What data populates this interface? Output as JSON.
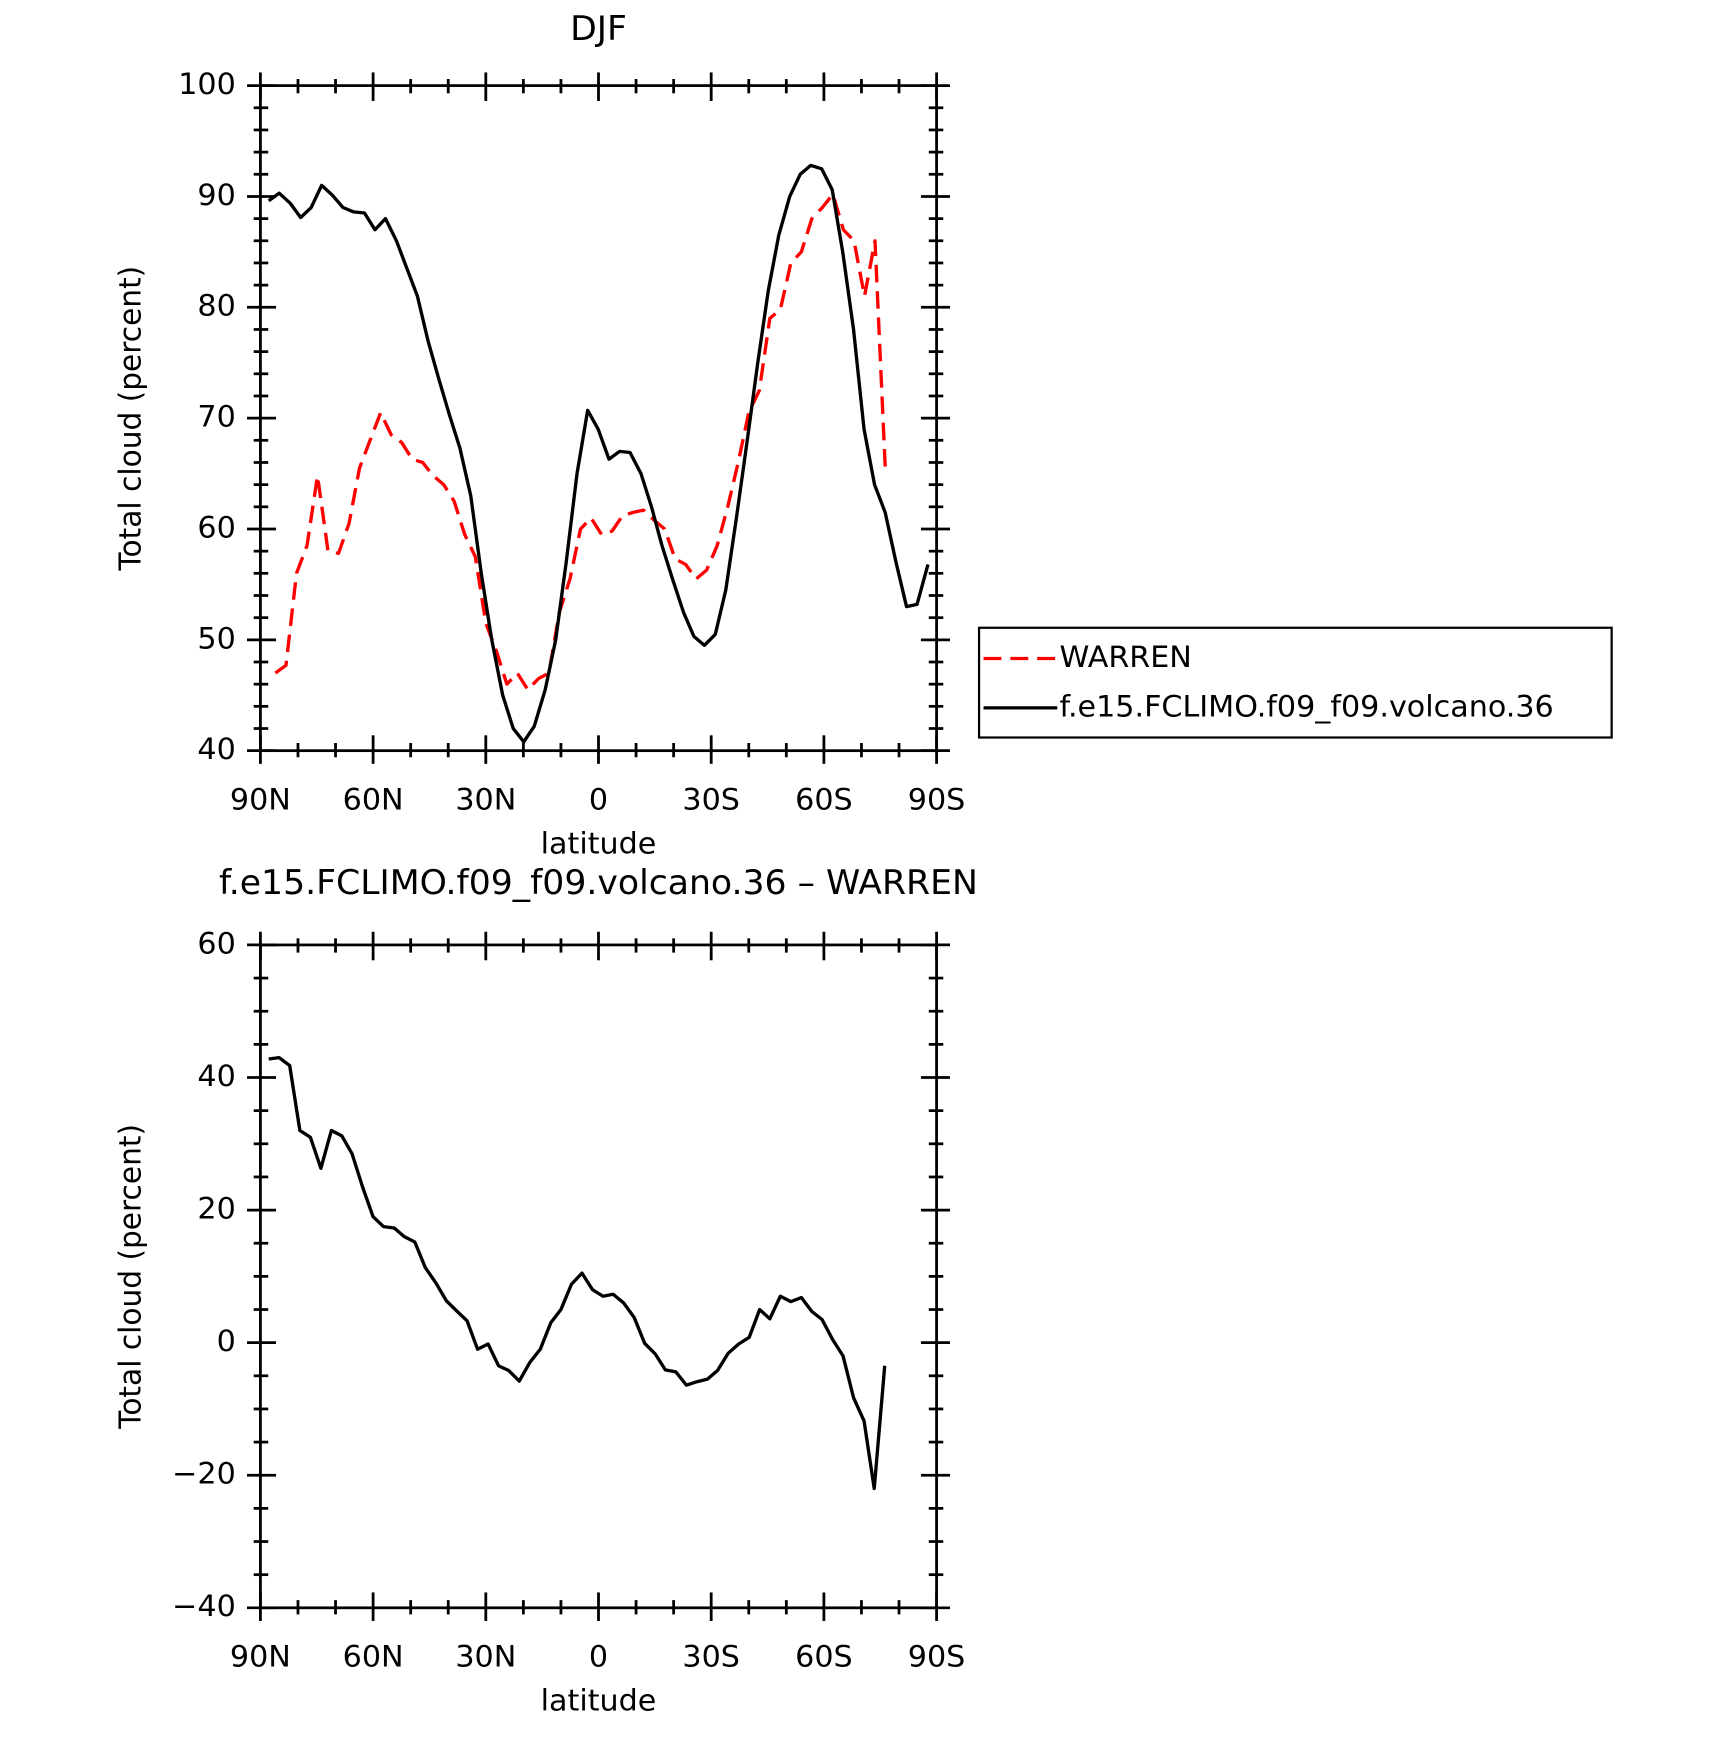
{
  "chart_data": [
    {
      "type": "line",
      "title": "DJF",
      "xlabel": "latitude",
      "ylabel": "Total cloud (percent)",
      "xlim": [
        90,
        -90
      ],
      "xticks": [
        {
          "value": 90,
          "label": "90N"
        },
        {
          "value": 60,
          "label": "60N"
        },
        {
          "value": 30,
          "label": "30N"
        },
        0,
        {
          "value": -30,
          "label": "30S"
        },
        {
          "value": -60,
          "label": "60S"
        },
        {
          "value": -90,
          "label": "90S"
        }
      ],
      "ylim": [
        40,
        100
      ],
      "yticks": [
        40,
        50,
        60,
        70,
        80,
        90,
        100
      ],
      "legend": "right",
      "series": [
        {
          "name": "WARREN",
          "color": "#ff0000",
          "style": "dashed",
          "x": [
            86.0,
            83.2,
            80.4,
            77.6,
            74.8,
            72.0,
            69.2,
            66.4,
            63.6,
            60.8,
            58.0,
            55.2,
            52.4,
            49.6,
            46.8,
            44.0,
            41.2,
            38.4,
            35.6,
            32.8,
            30.0,
            27.2,
            24.4,
            21.6,
            18.8,
            16.0,
            13.2,
            10.4,
            7.6,
            4.8,
            2.0,
            -0.8,
            -3.6,
            -6.4,
            -9.2,
            -12.0,
            -14.8,
            -17.6,
            -20.4,
            -23.2,
            -26.0,
            -28.8,
            -31.6,
            -34.4,
            -37.2,
            -40.0,
            -42.8,
            -45.6,
            -48.4,
            -51.2,
            -54.0,
            -56.8,
            -59.6,
            -62.4,
            -65.2,
            -68.0,
            -70.8,
            -73.6,
            -76.4
          ],
          "values": [
            47,
            47.7,
            56,
            58.5,
            64.8,
            58,
            57.8,
            60.5,
            65.5,
            68.0,
            70.5,
            68.5,
            67.8,
            66.3,
            66.0,
            64.8,
            64.0,
            62.5,
            59.5,
            57.5,
            51.5,
            49.0,
            46.0,
            47.0,
            45.5,
            46.5,
            47.0,
            52.5,
            55.5,
            60.0,
            61.0,
            59.5,
            59.8,
            61.2,
            61.5,
            61.7,
            60.8,
            60.0,
            57.3,
            56.8,
            55.5,
            56.3,
            58.5,
            62.0,
            66.0,
            70.5,
            72.5,
            79.0,
            79.8,
            84.0,
            85.0,
            88.0,
            89.0,
            90.2,
            87.0,
            86.0,
            81.0,
            86.0,
            65.0
          ]
        },
        {
          "name": "f.e15.FCLIMO.f09_f09.volcano.36",
          "color": "#000000",
          "style": "solid",
          "x": [
            87.8,
            85.0,
            82.1,
            79.3,
            76.5,
            73.7,
            70.8,
            68.0,
            65.2,
            62.3,
            59.5,
            56.7,
            53.8,
            51.0,
            48.2,
            45.4,
            42.5,
            39.7,
            36.9,
            34.0,
            31.2,
            28.4,
            25.5,
            22.7,
            19.9,
            17.1,
            14.2,
            11.4,
            8.6,
            5.7,
            2.9,
            0.1,
            -2.8,
            -5.6,
            -8.4,
            -11.3,
            -14.1,
            -16.9,
            -19.7,
            -22.6,
            -25.4,
            -28.2,
            -31.1,
            -33.9,
            -36.7,
            -39.6,
            -42.4,
            -45.2,
            -48.0,
            -50.9,
            -53.7,
            -56.5,
            -59.4,
            -62.2,
            -65.0,
            -67.9,
            -70.7,
            -73.5,
            -76.3,
            -79.2,
            -82.0,
            -84.8,
            -87.7
          ],
          "values": [
            89.6,
            90.3,
            89.4,
            88.1,
            89.0,
            91.0,
            90.1,
            89.0,
            88.6,
            88.5,
            87.0,
            88.0,
            86.0,
            83.5,
            81.0,
            77.0,
            73.5,
            70.3,
            67.3,
            63.0,
            56.0,
            50.0,
            45.0,
            42.0,
            40.8,
            42.2,
            45.5,
            50.0,
            57.0,
            65.0,
            70.7,
            69.0,
            66.3,
            67.0,
            66.9,
            65.0,
            62.0,
            58.5,
            55.5,
            52.5,
            50.3,
            49.5,
            50.5,
            54.5,
            61.0,
            68.0,
            75.0,
            81.5,
            86.5,
            90.0,
            92.0,
            92.8,
            92.5,
            90.6,
            85.0,
            78.0,
            69.0,
            64.0,
            61.5,
            57.0,
            53.0,
            53.2,
            56.8
          ]
        }
      ]
    },
    {
      "type": "line",
      "title": "f.e15.FCLIMO.f09_f09.volcano.36 – WARREN",
      "xlabel": "latitude",
      "ylabel": "Total cloud (percent)",
      "xlim": [
        90,
        -90
      ],
      "xticks": [
        {
          "value": 90,
          "label": "90N"
        },
        {
          "value": 60,
          "label": "60N"
        },
        {
          "value": 30,
          "label": "30N"
        },
        0,
        {
          "value": -30,
          "label": "30S"
        },
        {
          "value": -60,
          "label": "60S"
        },
        {
          "value": -90,
          "label": "90S"
        }
      ],
      "ylim": [
        -40,
        60
      ],
      "yticks": [
        {
          "value": -40,
          "label": "−40"
        },
        {
          "value": -20,
          "label": "−20"
        },
        0,
        20,
        40,
        60
      ],
      "color": "#000000",
      "x": [
        87.8,
        85.0,
        82.2,
        79.5,
        76.7,
        73.9,
        71.1,
        68.3,
        65.6,
        62.8,
        60.0,
        57.2,
        54.4,
        51.7,
        48.9,
        46.1,
        43.3,
        40.5,
        37.8,
        35.0,
        32.2,
        29.4,
        26.6,
        23.9,
        21.1,
        18.3,
        15.5,
        12.7,
        10.0,
        7.2,
        4.4,
        1.6,
        -1.2,
        -3.9,
        -6.7,
        -9.5,
        -12.3,
        -15.1,
        -17.8,
        -20.6,
        -23.4,
        -26.2,
        -29.0,
        -31.7,
        -34.5,
        -37.3,
        -40.1,
        -42.9,
        -45.6,
        -48.4,
        -51.2,
        -54.0,
        -56.8,
        -59.5,
        -62.3,
        -65.1,
        -67.9,
        -70.7,
        -73.4,
        -76.2
      ],
      "values": [
        42.8,
        43.0,
        41.8,
        32,
        31,
        26.3,
        32,
        31.2,
        28.5,
        23.5,
        19.0,
        17.5,
        17.3,
        16,
        15.2,
        11.3,
        9,
        6.3,
        4.8,
        3.3,
        -1,
        -0.2,
        -3.5,
        -4.2,
        -5.8,
        -3,
        -1,
        3,
        5,
        8.8,
        10.5,
        8,
        7,
        7.3,
        6,
        3.8,
        -0.1,
        -1.7,
        -4.1,
        -4.4,
        -6.4,
        -5.9,
        -5.5,
        -4.2,
        -1.6,
        -0.2,
        0.8,
        5,
        3.6,
        7,
        6.2,
        6.8,
        4.7,
        3.5,
        0.5,
        -2,
        -8.3,
        -11.8,
        -22,
        -3.5
      ]
    }
  ]
}
